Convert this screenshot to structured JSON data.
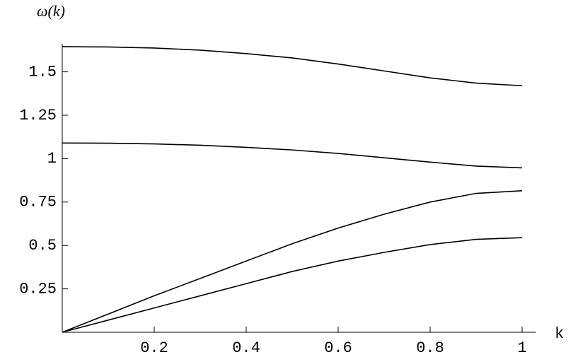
{
  "chart_data": {
    "type": "line",
    "y_label": "ω(k)",
    "x_label": "k",
    "x": [
      0,
      0.1,
      0.2,
      0.3,
      0.4,
      0.5,
      0.6,
      0.7,
      0.8,
      0.9,
      1
    ],
    "series": [
      {
        "color": "#000000",
        "values": [
          1.645,
          1.643,
          1.637,
          1.625,
          1.605,
          1.58,
          1.545,
          1.505,
          1.465,
          1.435,
          1.42
        ]
      },
      {
        "color": "#000000",
        "values": [
          1.09,
          1.089,
          1.085,
          1.077,
          1.065,
          1.05,
          1.03,
          1.005,
          0.98,
          0.957,
          0.947
        ]
      },
      {
        "color": "#000000",
        "values": [
          0,
          0.105,
          0.21,
          0.31,
          0.41,
          0.51,
          0.6,
          0.68,
          0.75,
          0.8,
          0.815
        ]
      },
      {
        "color": "#000000",
        "values": [
          0,
          0.07,
          0.14,
          0.21,
          0.28,
          0.35,
          0.41,
          0.46,
          0.505,
          0.535,
          0.545
        ]
      }
    ],
    "xlim": [
      0,
      1.03
    ],
    "ylim": [
      0,
      1.66
    ],
    "xticks": [
      0.2,
      0.4,
      0.6,
      0.8,
      1
    ],
    "yticks": [
      0.25,
      0.5,
      0.75,
      1,
      1.25,
      1.5
    ]
  }
}
